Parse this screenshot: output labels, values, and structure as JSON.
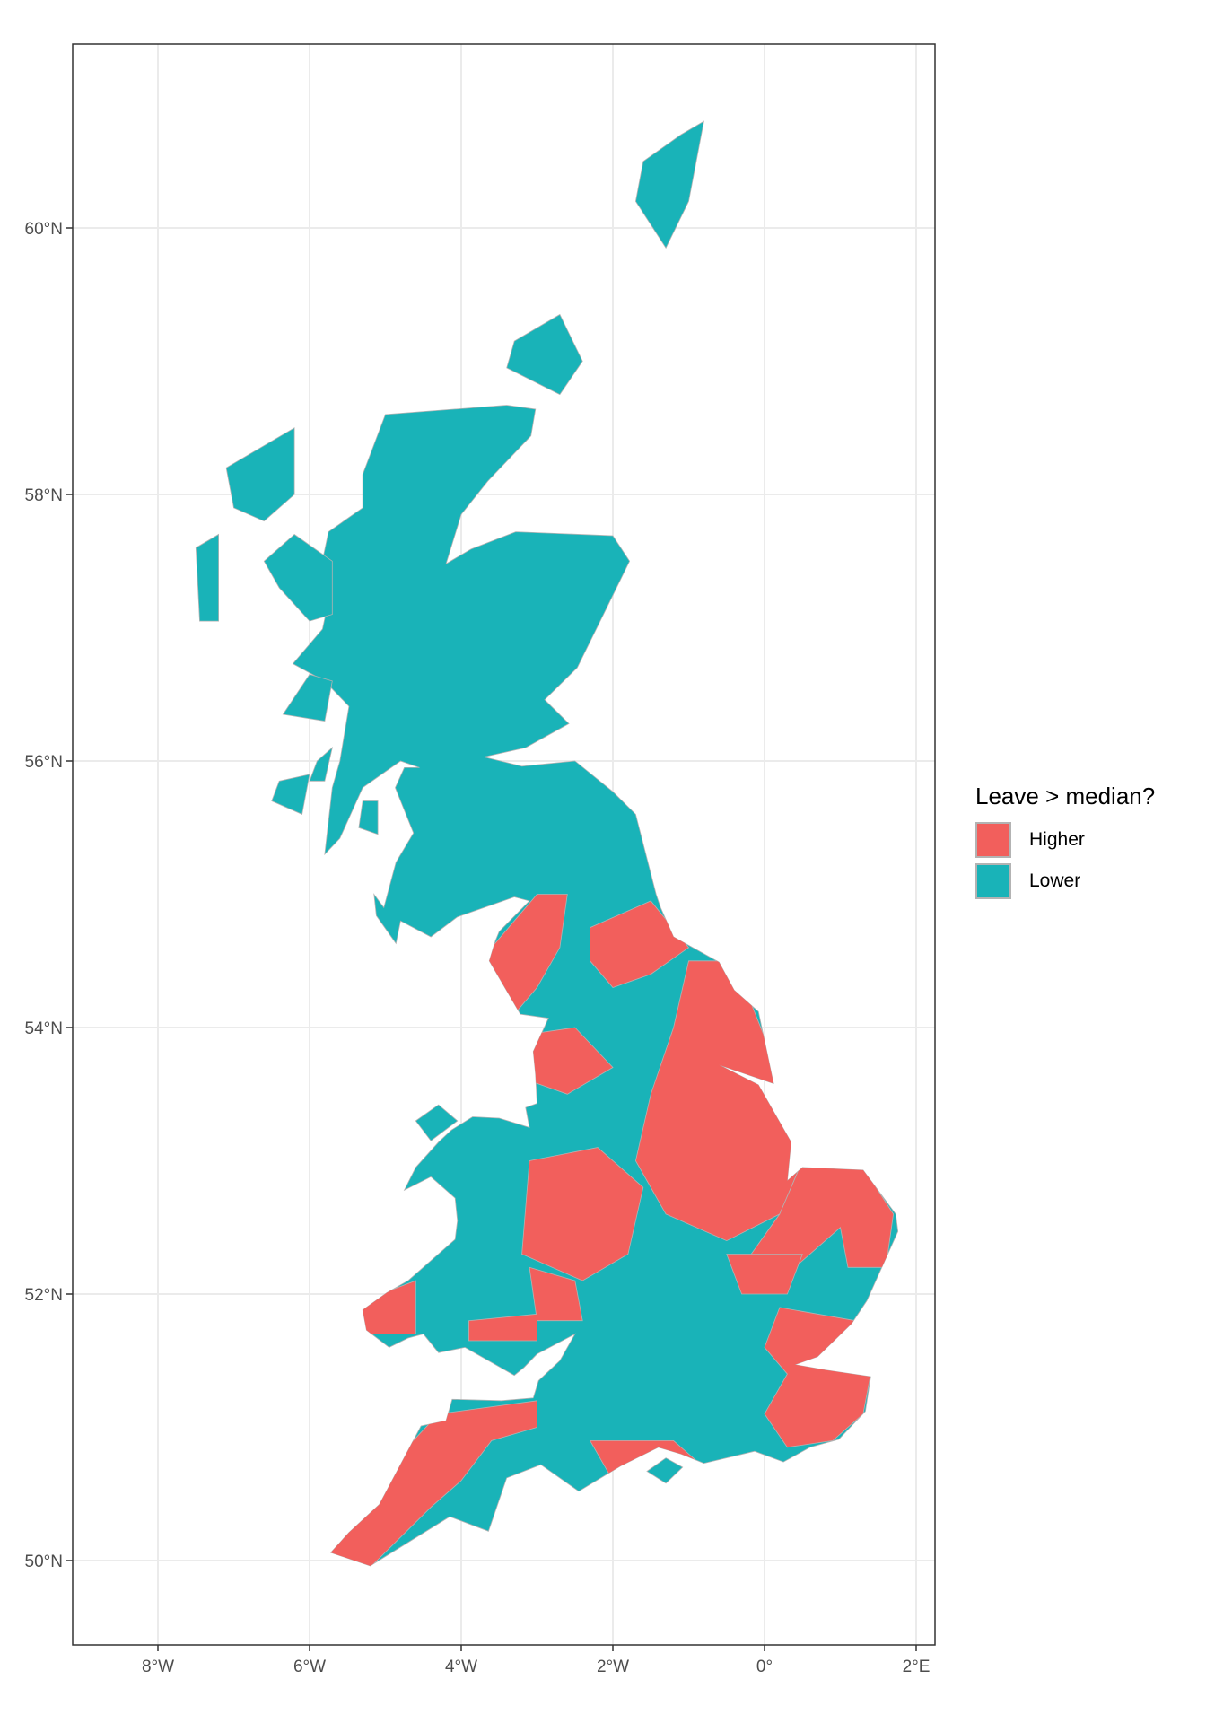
{
  "chart_data": {
    "type": "map",
    "subject": "Great Britain local authority choropleth",
    "fill_variable": "Leave > median?",
    "xlim": [
      -9.1,
      2.2
    ],
    "ylim": [
      49.4,
      61.4
    ],
    "grid": true,
    "x_ticks": [
      {
        "value": -8,
        "label": "8°W"
      },
      {
        "value": -6,
        "label": "6°W"
      },
      {
        "value": -4,
        "label": "4°W"
      },
      {
        "value": -2,
        "label": "2°W"
      },
      {
        "value": 0,
        "label": "0°"
      },
      {
        "value": 2,
        "label": "2°E"
      }
    ],
    "y_ticks": [
      {
        "value": 60,
        "label": "60°N"
      },
      {
        "value": 58,
        "label": "58°N"
      },
      {
        "value": 56,
        "label": "56°N"
      },
      {
        "value": 54,
        "label": "54°N"
      },
      {
        "value": 52,
        "label": "52°N"
      },
      {
        "value": 50,
        "label": "50°N"
      }
    ],
    "legend": {
      "title": "Leave > median?",
      "placement": "right",
      "items": [
        {
          "label": "Higher",
          "color": "#F8766D"
        },
        {
          "label": "Lower",
          "color": "#00BFC4"
        }
      ]
    }
  },
  "colors": {
    "higher": "#F25F5C",
    "lower": "#19B3B8",
    "boundary": "#B3B3B3",
    "grid": "#EBEBEB",
    "panel_border": "#333333"
  }
}
